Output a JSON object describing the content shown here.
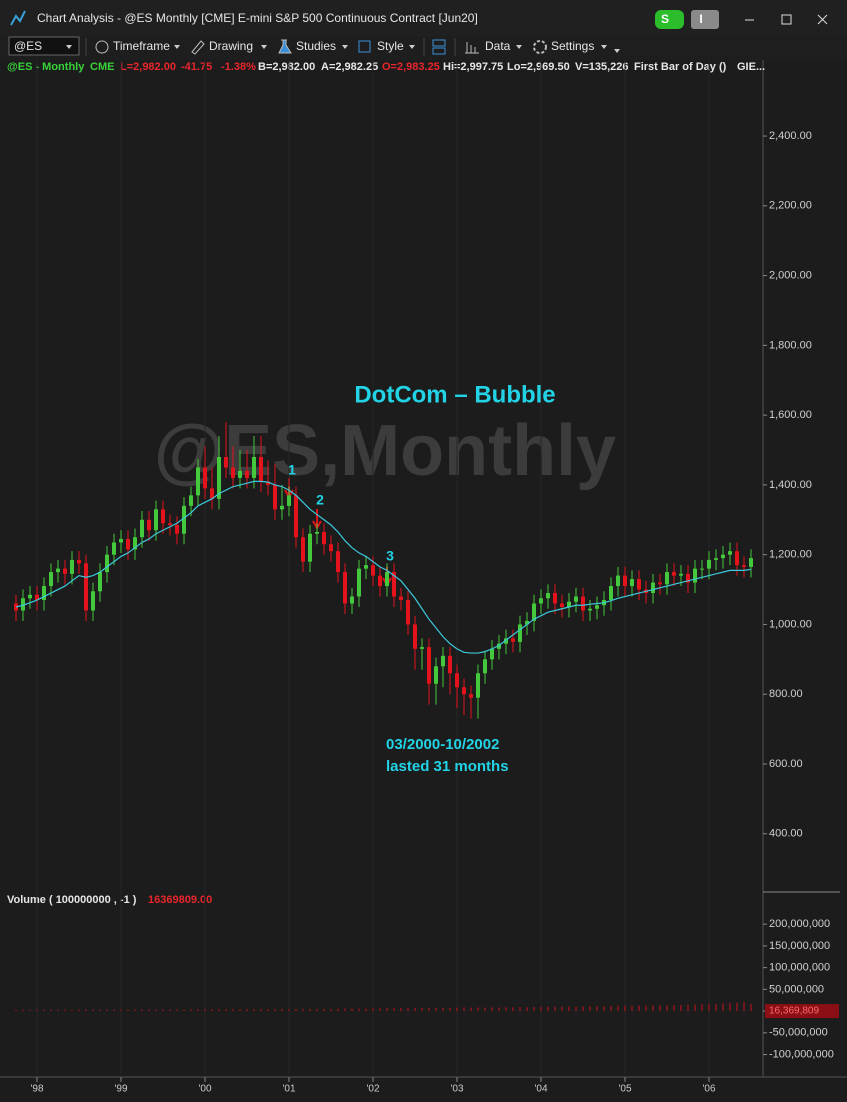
{
  "window": {
    "title": "Chart Analysis - @ES Monthly [CME] E-mini S&P 500 Continuous Contract [Jun20]",
    "badge_s": "S",
    "badge_i": "I"
  },
  "toolbar": {
    "symbol": "@ES",
    "items": [
      "Timeframe",
      "Drawing",
      "Studies",
      "Style",
      "Data",
      "Settings"
    ]
  },
  "header": {
    "symbol": "@ES - Monthly",
    "exchange": "CME",
    "last": "L=2,982.00",
    "change": "-41.75",
    "percent": "-1.38%",
    "bid": "B=2,982.00",
    "ask": "A=2,982.25",
    "open": "O=2,983.25",
    "high": "Hi=2,997.75",
    "low": "Lo=2,969.50",
    "volume": "V=135,226",
    "study": "First Bar of Day ()",
    "more": "GIE..."
  },
  "chart_data": [
    {
      "type": "candlestick",
      "watermark": "@ES,Monthly",
      "up_color": "#45c93c",
      "down_color": "#e3121b",
      "grid": true,
      "categories": [
        null,
        null,
        null,
        "'98",
        null,
        null,
        null,
        null,
        null,
        null,
        null,
        null,
        null,
        null,
        null,
        "'99",
        null,
        null,
        null,
        null,
        null,
        null,
        null,
        null,
        null,
        null,
        null,
        "'00",
        null,
        null,
        null,
        null,
        null,
        null,
        null,
        null,
        null,
        null,
        null,
        "'01",
        null,
        null,
        null,
        null,
        null,
        null,
        null,
        null,
        null,
        null,
        null,
        "'02",
        null,
        null,
        null,
        null,
        null,
        null,
        null,
        null,
        null,
        null,
        null,
        "'03",
        null,
        null,
        null,
        null,
        null,
        null,
        null,
        null,
        null,
        null,
        null,
        "'04",
        null,
        null,
        null,
        null,
        null,
        null,
        null,
        null,
        null,
        null,
        null,
        "'05",
        null,
        null,
        null,
        null,
        null,
        null,
        null,
        null,
        null,
        null,
        null,
        "'06",
        null,
        null,
        null,
        null,
        null,
        null
      ],
      "open": [
        1060,
        1040,
        1075,
        1085,
        1070,
        1110,
        1150,
        1160,
        1145,
        1185,
        1175,
        1040,
        1095,
        1150,
        1200,
        1235,
        1245,
        1215,
        1250,
        1300,
        1270,
        1330,
        1290,
        1285,
        1260,
        1340,
        1370,
        1450,
        1390,
        1360,
        1480,
        1450,
        1420,
        1440,
        1420,
        1480,
        1410,
        1400,
        1330,
        1340,
        1370,
        1250,
        1180,
        1260,
        1265,
        1230,
        1210,
        1150,
        1060,
        1080,
        1160,
        1170,
        1140,
        1110,
        1150,
        1080,
        1070,
        1000,
        930,
        935,
        830,
        880,
        910,
        860,
        820,
        800,
        790,
        860,
        900,
        930,
        945,
        960,
        950,
        1000,
        1010,
        1060,
        1075,
        1090,
        1060,
        1050,
        1065,
        1080,
        1040,
        1045,
        1055,
        1070,
        1110,
        1140,
        1110,
        1130,
        1100,
        1090,
        1120,
        1115,
        1150,
        1140,
        1145,
        1120,
        1160,
        1160,
        1185,
        1190,
        1200,
        1210,
        1170,
        1165
      ],
      "high": [
        1085,
        1100,
        1110,
        1110,
        1135,
        1175,
        1185,
        1185,
        1210,
        1210,
        1200,
        1120,
        1175,
        1225,
        1260,
        1270,
        1270,
        1275,
        1325,
        1325,
        1355,
        1355,
        1315,
        1310,
        1365,
        1395,
        1475,
        1510,
        1450,
        1540,
        1580,
        1510,
        1500,
        1500,
        1540,
        1540,
        1470,
        1460,
        1400,
        1395,
        1395,
        1275,
        1285,
        1290,
        1290,
        1255,
        1235,
        1175,
        1105,
        1185,
        1195,
        1195,
        1165,
        1175,
        1175,
        1105,
        1095,
        1025,
        960,
        960,
        905,
        935,
        935,
        885,
        845,
        825,
        885,
        925,
        955,
        970,
        985,
        985,
        1025,
        1035,
        1085,
        1100,
        1115,
        1115,
        1085,
        1090,
        1105,
        1105,
        1070,
        1080,
        1095,
        1135,
        1165,
        1165,
        1155,
        1155,
        1125,
        1145,
        1145,
        1175,
        1175,
        1170,
        1170,
        1185,
        1185,
        1210,
        1215,
        1225,
        1235,
        1235,
        1195,
        1215
      ],
      "low": [
        1010,
        1010,
        1045,
        1040,
        1040,
        1080,
        1120,
        1115,
        1115,
        1145,
        1010,
        1010,
        1065,
        1120,
        1170,
        1205,
        1185,
        1185,
        1220,
        1240,
        1240,
        1260,
        1255,
        1230,
        1230,
        1310,
        1340,
        1360,
        1330,
        1330,
        1420,
        1390,
        1390,
        1390,
        1390,
        1380,
        1370,
        1300,
        1300,
        1310,
        1220,
        1150,
        1150,
        1230,
        1200,
        1180,
        1120,
        1030,
        1030,
        1050,
        1130,
        1110,
        1080,
        1080,
        1050,
        1040,
        970,
        870,
        870,
        770,
        770,
        820,
        800,
        760,
        740,
        730,
        730,
        830,
        870,
        900,
        915,
        920,
        920,
        970,
        980,
        1030,
        1045,
        1030,
        1020,
        1020,
        1035,
        1010,
        1010,
        1015,
        1025,
        1040,
        1080,
        1080,
        1080,
        1070,
        1060,
        1060,
        1085,
        1085,
        1110,
        1110,
        1090,
        1090,
        1130,
        1130,
        1155,
        1160,
        1170,
        1140,
        1135,
        1135
      ],
      "close": [
        1040,
        1075,
        1085,
        1070,
        1110,
        1150,
        1160,
        1145,
        1185,
        1175,
        1040,
        1095,
        1150,
        1200,
        1235,
        1245,
        1215,
        1250,
        1300,
        1270,
        1330,
        1290,
        1285,
        1260,
        1340,
        1370,
        1450,
        1390,
        1360,
        1480,
        1450,
        1420,
        1440,
        1420,
        1480,
        1410,
        1400,
        1330,
        1340,
        1370,
        1250,
        1180,
        1260,
        1265,
        1230,
        1210,
        1150,
        1060,
        1080,
        1160,
        1170,
        1140,
        1110,
        1150,
        1080,
        1070,
        1000,
        930,
        935,
        830,
        880,
        910,
        860,
        820,
        800,
        790,
        860,
        900,
        930,
        945,
        960,
        950,
        1000,
        1010,
        1060,
        1075,
        1090,
        1060,
        1050,
        1065,
        1080,
        1040,
        1045,
        1055,
        1070,
        1110,
        1140,
        1110,
        1130,
        1100,
        1090,
        1120,
        1115,
        1150,
        1140,
        1145,
        1120,
        1160,
        1160,
        1185,
        1190,
        1200,
        1210,
        1170,
        1165,
        1190
      ],
      "lines": [
        {
          "color": "#3cc9dc",
          "values": [
            1050,
            1055,
            1062,
            1070,
            1080,
            1090,
            1100,
            1110,
            1125,
            1140,
            1135,
            1140,
            1150,
            1165,
            1180,
            1195,
            1205,
            1220,
            1235,
            1245,
            1260,
            1270,
            1280,
            1290,
            1305,
            1320,
            1340,
            1350,
            1360,
            1375,
            1385,
            1395,
            1400,
            1405,
            1410,
            1410,
            1408,
            1400,
            1395,
            1385,
            1370,
            1350,
            1330,
            1315,
            1300,
            1285,
            1265,
            1240,
            1220,
            1205,
            1195,
            1180,
            1165,
            1155,
            1140,
            1125,
            1100,
            1075,
            1045,
            1015,
            990,
            965,
            945,
            930,
            920,
            918,
            918,
            922,
            930,
            940,
            955,
            970,
            985,
            1000,
            1015,
            1025,
            1035,
            1040,
            1045,
            1050,
            1055,
            1055,
            1058,
            1060,
            1062,
            1068,
            1075,
            1080,
            1085,
            1090,
            1095,
            1100,
            1105,
            1110,
            1115,
            1120,
            1125,
            1130,
            1135,
            1140,
            1145,
            1150,
            1155,
            1155,
            1155,
            1158
          ]
        }
      ],
      "ylim": [
        233,
        2618
      ],
      "yticks": [
        {
          "value": 400,
          "label": "400.00"
        },
        {
          "value": 600,
          "label": "600.00"
        },
        {
          "value": 800,
          "label": "800.00"
        },
        {
          "value": 1000,
          "label": "1,000.00"
        },
        {
          "value": 1200,
          "label": "1,200.00"
        },
        {
          "value": 1400,
          "label": "1,400.00"
        },
        {
          "value": 1600,
          "label": "1,600.00"
        },
        {
          "value": 1800,
          "label": "1,800.00"
        },
        {
          "value": 2000,
          "label": "2,000.00"
        },
        {
          "value": 2200,
          "label": "2,200.00"
        },
        {
          "value": 2400,
          "label": "2,400.00"
        }
      ],
      "annotations": [
        "DotCom – Bubble",
        "1",
        "2",
        "3",
        "03/2000-10/2002",
        "lasted 31 months"
      ]
    },
    {
      "type": "bar",
      "title": "Volume ( 100000000 , -1 )",
      "last_label": "16369809.00",
      "tag": "16,369,809",
      "color": "#c3141b",
      "values": [
        3000000,
        3200000,
        2900000,
        3100000,
        3300000,
        3000000,
        3200000,
        3400000,
        3100000,
        3500000,
        3800000,
        3300000,
        3400000,
        3200000,
        3500000,
        3400000,
        3600000,
        3500000,
        3700000,
        3600000,
        3500000,
        3800000,
        3600000,
        3700000,
        3900000,
        3800000,
        4000000,
        4200000,
        4100000,
        4400000,
        4300000,
        4200000,
        4500000,
        4300000,
        4400000,
        4600000,
        4500000,
        4700000,
        4800000,
        5000000,
        5200000,
        5400000,
        5100000,
        5300000,
        5500000,
        5400000,
        5800000,
        6200000,
        6000000,
        5900000,
        6100000,
        6400000,
        6500000,
        6800000,
        6600000,
        7000000,
        7300000,
        7600000,
        7200000,
        7800000,
        7500000,
        7400000,
        7700000,
        7900000,
        8200000,
        8100000,
        8400000,
        8300000,
        8600000,
        8500000,
        8800000,
        9000000,
        9200000,
        9100000,
        9500000,
        9800000,
        10200000,
        10000000,
        10500000,
        10300000,
        10800000,
        11000000,
        11200000,
        11500000,
        11300000,
        11800000,
        12200000,
        12500000,
        12300000,
        12800000,
        13000000,
        13300000,
        13600000,
        13400000,
        14000000,
        14300000,
        14800000,
        15200000,
        15600000,
        16000000,
        17000000,
        17800000,
        18500000,
        19500000,
        20500000,
        16369809
      ],
      "ylim": [
        -147000000,
        274000000
      ],
      "yticks": [
        {
          "value": 200000000,
          "label": "200,000,000"
        },
        {
          "value": 150000000,
          "label": "150,000,000"
        },
        {
          "value": 100000000,
          "label": "100,000,000"
        },
        {
          "value": 50000000,
          "label": "50,000,000"
        },
        0,
        {
          "value": -50000000,
          "label": "-50,000,000"
        },
        {
          "value": -100000000,
          "label": "-100,000,000"
        }
      ]
    }
  ]
}
